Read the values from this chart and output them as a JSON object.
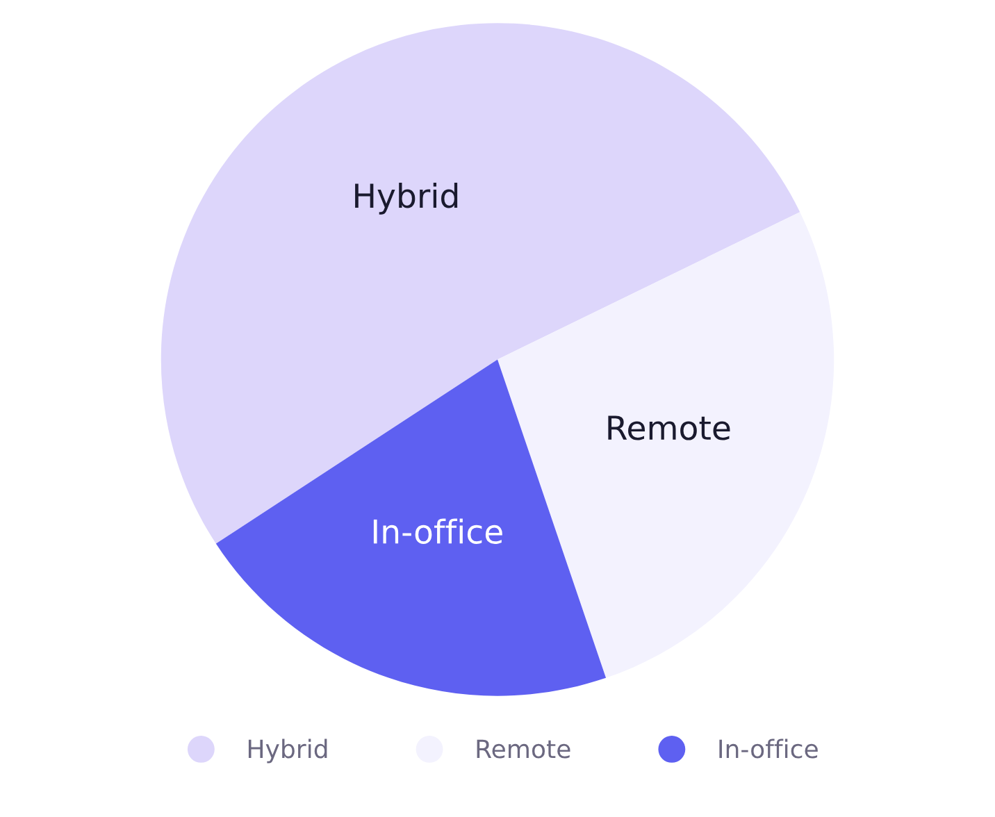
{
  "chart_data": {
    "type": "pie",
    "categories": [
      "Hybrid",
      "Remote",
      "In-office"
    ],
    "values": [
      52,
      27,
      21
    ],
    "colors": [
      "#ddd6fb",
      "#f3f2fe",
      "#5e60f1"
    ],
    "legend": "bottom"
  }
}
